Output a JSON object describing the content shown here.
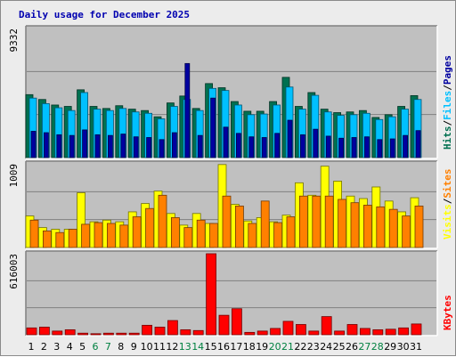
{
  "chart_data": {
    "type": "bar",
    "title": "Daily usage for December 2025",
    "categories": [
      "1",
      "2",
      "3",
      "4",
      "5",
      "6",
      "7",
      "8",
      "9",
      "10",
      "11",
      "12",
      "13",
      "14",
      "15",
      "16",
      "17",
      "18",
      "19",
      "20",
      "21",
      "22",
      "23",
      "24",
      "25",
      "26",
      "27",
      "28",
      "29",
      "30",
      "31"
    ],
    "weekend_days": [
      "6",
      "7",
      "13",
      "14",
      "20",
      "21",
      "27",
      "28"
    ],
    "colors": {
      "title": "#0000b0",
      "hits": "#007050",
      "files": "#00c0ff",
      "pages": "#0000a0",
      "visits": "#ffff00",
      "sites": "#ff8000",
      "kbytes": "#ff0000",
      "weekend_label": "#008040",
      "panel_bg": "#c0c0c0",
      "frame_bg": "#ececec"
    },
    "panels": [
      {
        "id": "hits-files-pages",
        "max_label": "9332",
        "ylim": [
          0,
          9332
        ],
        "legend": [
          {
            "text": "Hits",
            "series": "hits"
          },
          {
            "text": "/",
            "series": "separator"
          },
          {
            "text": "Files",
            "series": "files"
          },
          {
            "text": "/",
            "series": "separator"
          },
          {
            "text": "Pages",
            "series": "pages"
          }
        ],
        "series": [
          {
            "name": "Hits",
            "key": "hits",
            "values": [
              4550,
              4200,
              3800,
              3700,
              4900,
              3700,
              3550,
              3750,
              3500,
              3400,
              2950,
              3950,
              4450,
              3550,
              5350,
              5050,
              4050,
              3350,
              3350,
              4050,
              5800,
              3700,
              4700,
              3500,
              3250,
              3300,
              3400,
              2900,
              3100,
              3700,
              4480
            ]
          },
          {
            "name": "Files",
            "key": "files",
            "values": [
              4300,
              3900,
              3600,
              3400,
              4700,
              3500,
              3400,
              3550,
              3300,
              3200,
              2800,
              3700,
              4200,
              3400,
              5000,
              4850,
              3800,
              3100,
              3150,
              3800,
              5100,
              3500,
              4500,
              3300,
              3050,
              3100,
              3200,
              2750,
              2950,
              3500,
              4200
            ]
          },
          {
            "name": "Pages",
            "key": "pages",
            "values": [
              1900,
              1800,
              1650,
              1600,
              2000,
              1650,
              1600,
              1700,
              1500,
              1450,
              1300,
              1800,
              6800,
              1600,
              4300,
              2200,
              1750,
              1500,
              1450,
              1750,
              2700,
              1650,
              2050,
              1550,
              1400,
              1450,
              1500,
              1300,
              1350,
              1600,
              1950
            ]
          }
        ]
      },
      {
        "id": "visits-sites",
        "max_label": "1009",
        "ylim": [
          0,
          1009
        ],
        "legend": [
          {
            "text": "Visits",
            "series": "visits"
          },
          {
            "text": "/",
            "series": "separator"
          },
          {
            "text": "Sites",
            "series": "sites"
          }
        ],
        "series": [
          {
            "name": "Visits",
            "key": "visits",
            "values": [
              380,
              240,
              220,
              220,
              660,
              310,
              330,
              310,
              430,
              530,
              680,
              410,
              270,
              410,
              290,
              1000,
              520,
              320,
              360,
              310,
              390,
              780,
              630,
              980,
              800,
              620,
              590,
              730,
              560,
              430,
              600
            ]
          },
          {
            "name": "Sites",
            "key": "sites",
            "values": [
              330,
              200,
              180,
              220,
              280,
              300,
              290,
              270,
              370,
              470,
              630,
              360,
              240,
              330,
              290,
              620,
              500,
              290,
              560,
              300,
              370,
              620,
              620,
              620,
              580,
              540,
              510,
              490,
              460,
              380,
              500
            ]
          }
        ]
      },
      {
        "id": "kbytes",
        "max_label": "616003",
        "ylim": [
          0,
          616003
        ],
        "legend": [
          {
            "text": "KBytes",
            "series": "kbytes"
          }
        ],
        "series": [
          {
            "name": "KBytes",
            "key": "kbytes",
            "values": [
              52000,
              58000,
              28000,
              38000,
              12000,
              8000,
              12000,
              12000,
              12000,
              72000,
              58000,
              108000,
              38000,
              32000,
              616003,
              148000,
              198000,
              18000,
              28000,
              48000,
              102000,
              78000,
              28000,
              138000,
              28000,
              78000,
              48000,
              38000,
              42000,
              52000,
              82000
            ]
          }
        ]
      }
    ]
  }
}
